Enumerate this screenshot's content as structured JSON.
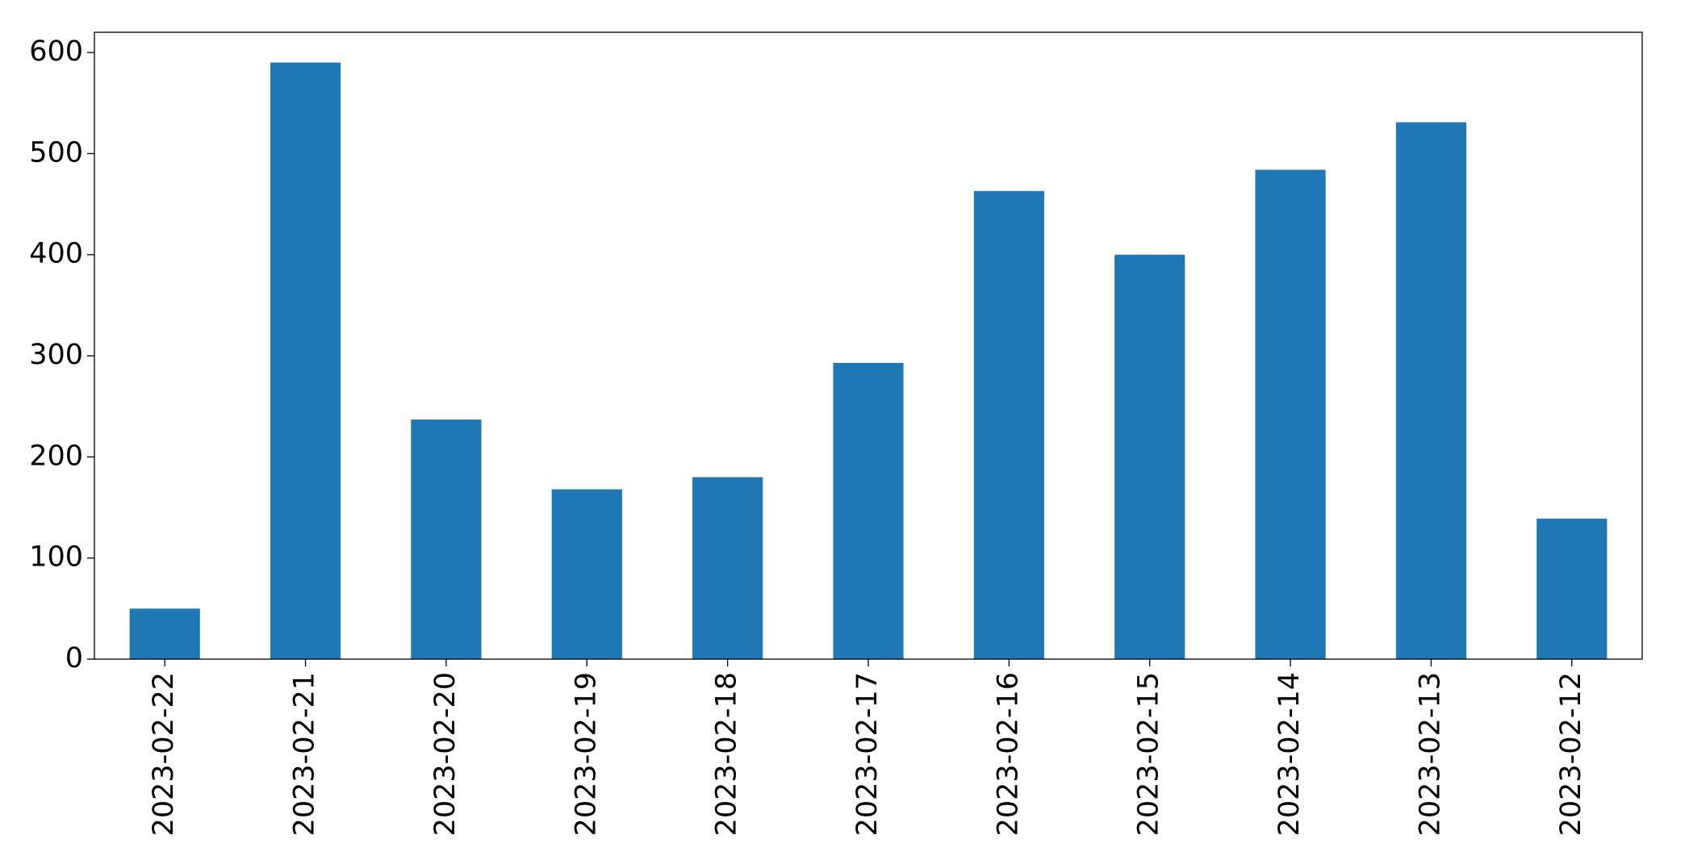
{
  "chart_data": {
    "type": "bar",
    "categories": [
      "2023-02-22",
      "2023-02-21",
      "2023-02-20",
      "2023-02-19",
      "2023-02-18",
      "2023-02-17",
      "2023-02-16",
      "2023-02-15",
      "2023-02-14",
      "2023-02-13",
      "2023-02-12"
    ],
    "values": [
      50,
      590,
      237,
      168,
      180,
      293,
      463,
      400,
      484,
      531,
      139
    ],
    "color": "#1f77b4",
    "ylim": [
      0,
      620
    ],
    "yticks": [
      0,
      100,
      200,
      300,
      400,
      500,
      600
    ],
    "grid": false
  }
}
